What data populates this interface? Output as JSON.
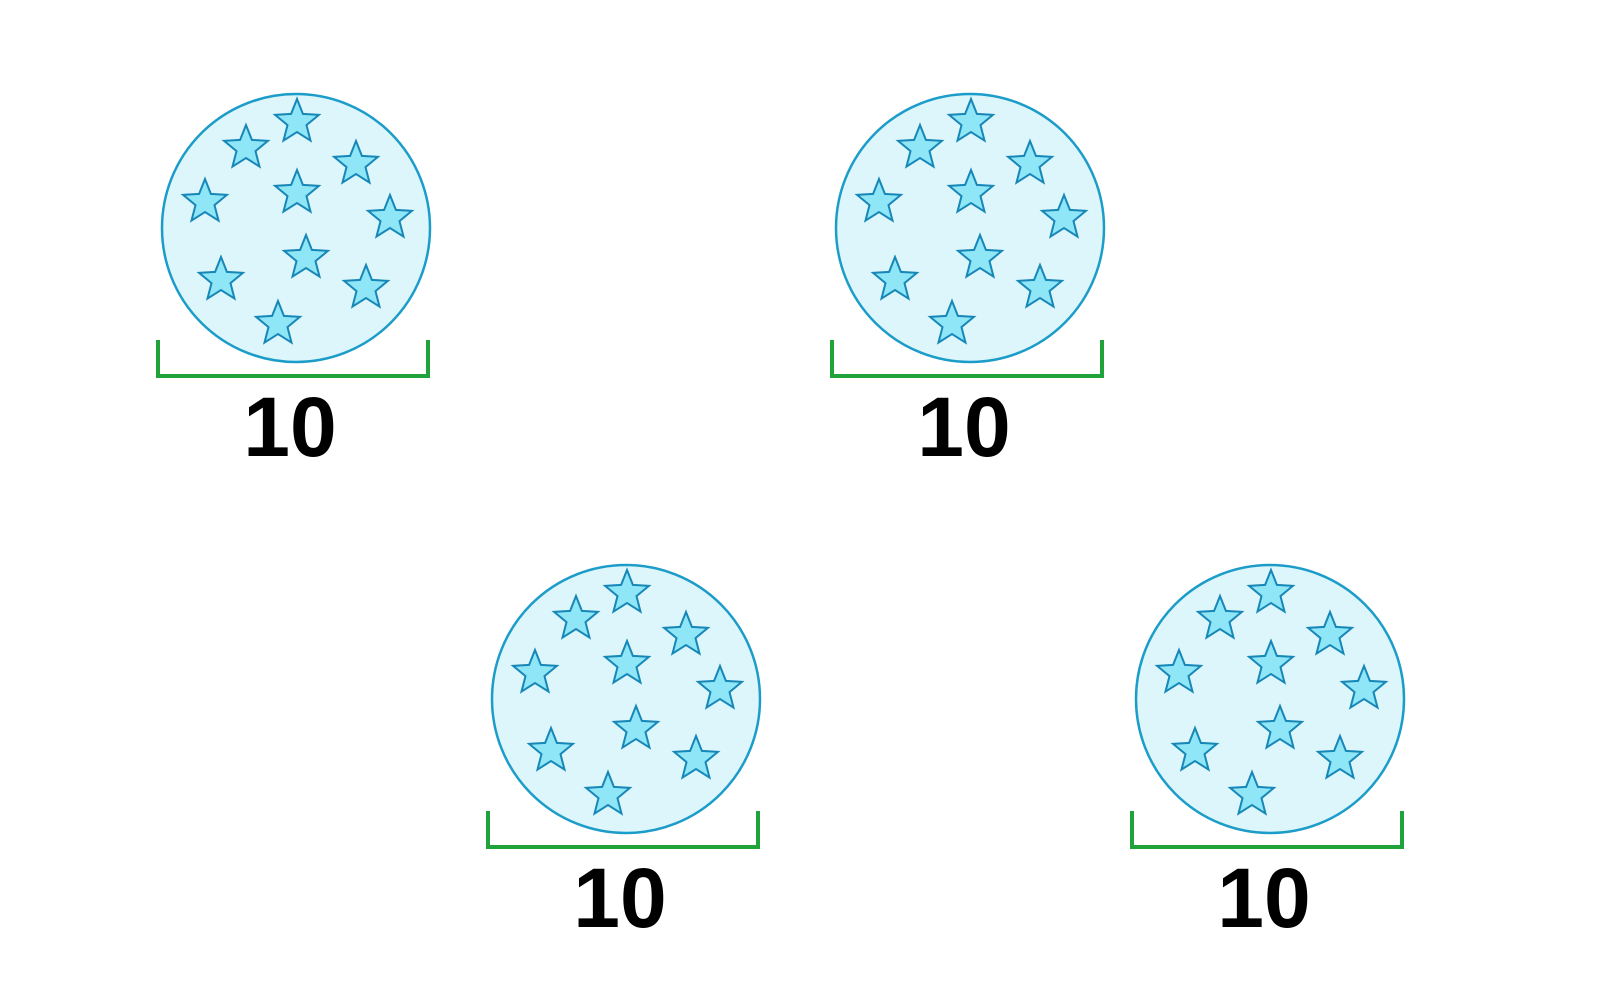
{
  "colors": {
    "circle_fill": "#ddf6fb",
    "circle_stroke": "#1c9cc9",
    "star_fill": "#8fe6f7",
    "star_stroke": "#1787b8",
    "bracket": "#1fa33a",
    "label": "#000000",
    "background": "#ffffff"
  },
  "groups": [
    {
      "label": "10",
      "star_count": 10
    },
    {
      "label": "10",
      "star_count": 10
    },
    {
      "label": "10",
      "star_count": 10
    },
    {
      "label": "10",
      "star_count": 10
    }
  ]
}
